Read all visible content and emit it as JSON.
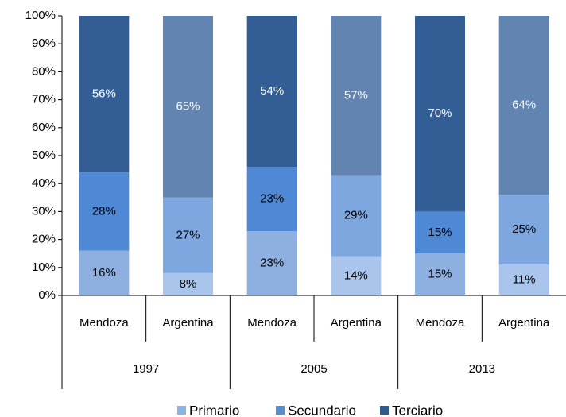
{
  "chart_data": {
    "type": "stacked_bar",
    "categories": [
      "Mendoza",
      "Argentina",
      "Mendoza",
      "Argentina",
      "Mendoza",
      "Argentina"
    ],
    "groups": [
      "1997",
      "2005",
      "2013"
    ],
    "series": [
      {
        "name": "Primario",
        "color": "#8db3e2",
        "colors": [
          "#8eb0e0",
          "#a9c5eb",
          "#8eb0e0",
          "#a9c5eb",
          "#8eb0e0",
          "#a9c5eb"
        ],
        "values": [
          16,
          8,
          23,
          14,
          15,
          11
        ],
        "value_labels": [
          "16%",
          "8%",
          "23%",
          "14%",
          "15%",
          "11%"
        ]
      },
      {
        "name": "Secundario",
        "color": "#558ed5",
        "colors": [
          "#4f88d4",
          "#7ea7df",
          "#4f88d4",
          "#7ea7df",
          "#4f88d4",
          "#7ea7df"
        ],
        "values": [
          28,
          27,
          23,
          29,
          15,
          25
        ],
        "value_labels": [
          "28%",
          "27%",
          "23%",
          "29%",
          "15%",
          "25%"
        ]
      },
      {
        "name": "Terciario",
        "color": "#2f5b91",
        "colors": [
          "#335e95",
          "#6185b0",
          "#335e95",
          "#6185b0",
          "#335e95",
          "#6185b0"
        ],
        "values": [
          56,
          65,
          54,
          57,
          70,
          64
        ],
        "value_labels": [
          "56%",
          "65%",
          "54%",
          "57%",
          "70%",
          "64%"
        ]
      }
    ],
    "ylim": [
      0,
      100
    ],
    "yticks": [
      {
        "value": 0,
        "label": "0%"
      },
      {
        "value": 10,
        "label": "10%"
      },
      {
        "value": 20,
        "label": "20%"
      },
      {
        "value": 30,
        "label": "30%"
      },
      {
        "value": 40,
        "label": "40%"
      },
      {
        "value": 50,
        "label": "50%"
      },
      {
        "value": 60,
        "label": "60%"
      },
      {
        "value": 70,
        "label": "70%"
      },
      {
        "value": 80,
        "label": "80%"
      },
      {
        "value": 90,
        "label": "90%"
      },
      {
        "value": 100,
        "label": "100%"
      }
    ],
    "legend": "bottom"
  }
}
